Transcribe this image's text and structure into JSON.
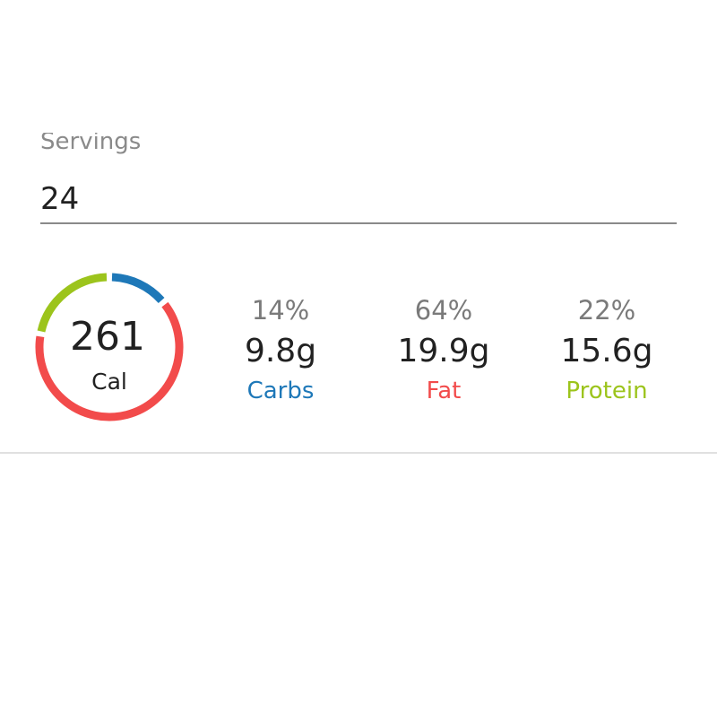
{
  "servings": {
    "label": "Servings",
    "value": 24
  },
  "calories": {
    "value": 261,
    "unit": "Cal"
  },
  "macros": [
    {
      "name": "Carbs",
      "percent": 14,
      "percent_label": "14%",
      "amount": "9.8g",
      "color": "#1e78b8"
    },
    {
      "name": "Fat",
      "percent": 64,
      "percent_label": "64%",
      "amount": "19.9g",
      "color": "#f24b4b"
    },
    {
      "name": "Protein",
      "percent": 22,
      "percent_label": "22%",
      "amount": "15.6g",
      "color": "#9cc41c"
    }
  ]
}
